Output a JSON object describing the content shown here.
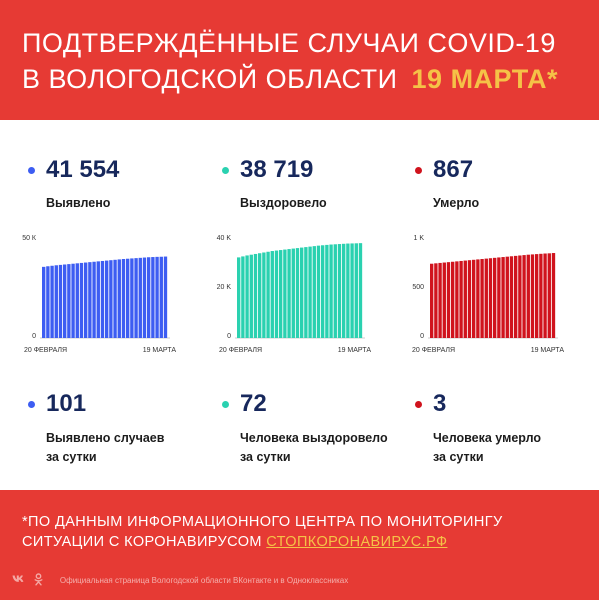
{
  "header": {
    "line1": "ПОДТВЕРЖДЁННЫЕ СЛУЧАИ COVID-19",
    "line2": "В ВОЛОГОДСКОЙ ОБЛАСТИ",
    "date": "19 МАРТА*"
  },
  "colors": {
    "brand_red": "#e63a34",
    "accent_yellow": "#f5c247",
    "detected_blue": "#3d5df2",
    "recovered_teal": "#2ad1b0",
    "died_red": "#d0131d",
    "number_navy": "#17285c"
  },
  "totals": [
    {
      "value": "41 554",
      "label": "Выявлено"
    },
    {
      "value": "38 719",
      "label": "Выздоровело"
    },
    {
      "value": "867",
      "label": "Умерло"
    }
  ],
  "daily": [
    {
      "value": "101",
      "label_line1": "Выявлено случаев",
      "label_line2": "за сутки"
    },
    {
      "value": "72",
      "label_line1": "Человека выздоровело",
      "label_line2": "за сутки"
    },
    {
      "value": "3",
      "label_line1": "Человека умерло",
      "label_line2": "за сутки"
    }
  ],
  "chart_data": [
    {
      "type": "bar",
      "series": [
        {
          "values": [
            36300,
            36600,
            36850,
            37100,
            37300,
            37500,
            37700,
            37900,
            38100,
            38300,
            38500,
            38700,
            38900,
            39100,
            39300,
            39500,
            39700,
            39900,
            40100,
            40300,
            40450,
            40600,
            40750,
            40900,
            41050,
            41200,
            41300,
            41400,
            41454,
            41554
          ]
        }
      ],
      "x_tick_labels": [
        "20 ФЕВРАЛЯ",
        "19 МАРТА"
      ],
      "y_tick_labels": [
        "50 К",
        "0"
      ],
      "ylim": [
        0,
        50000
      ],
      "color": "#3d5df2"
    },
    {
      "type": "bar",
      "series": [
        {
          "values": [
            32900,
            33300,
            33700,
            34000,
            34300,
            34600,
            34900,
            35200,
            35500,
            35700,
            35900,
            36100,
            36300,
            36500,
            36700,
            36900,
            37100,
            37300,
            37500,
            37700,
            37850,
            38000,
            38150,
            38250,
            38350,
            38450,
            38550,
            38600,
            38647,
            38719
          ]
        }
      ],
      "x_tick_labels": [
        "20 ФЕВРАЛЯ",
        "19 МАРТА"
      ],
      "y_tick_labels": [
        "40 K",
        "20 K",
        "0"
      ],
      "ylim": [
        0,
        40000
      ],
      "color": "#2ad1b0"
    },
    {
      "type": "bar",
      "series": [
        {
          "values": [
            758,
            762,
            766,
            770,
            774,
            778,
            782,
            786,
            790,
            794,
            798,
            802,
            806,
            810,
            814,
            818,
            822,
            826,
            830,
            834,
            838,
            842,
            846,
            850,
            853,
            856,
            859,
            862,
            864,
            867
          ]
        }
      ],
      "x_tick_labels": [
        "20 ФЕВРАЛЯ",
        "19 МАРТА"
      ],
      "y_tick_labels": [
        "1 K",
        "500",
        "0"
      ],
      "ylim": [
        0,
        1000
      ],
      "color": "#d0131d"
    }
  ],
  "footer": {
    "note_line1": "*ПО ДАННЫМ ИНФОРМАЦИОННОГО ЦЕНТРА ПО МОНИТОРИНГУ",
    "note_line2_prefix": "СИТУАЦИИ С КОРОНАВИРУСОМ ",
    "note_link": "СТОПКОРОНАВИРУС.РФ",
    "social_icons": [
      "vk-icon",
      "odnoklassniki-icon"
    ],
    "social_text": "Официальная страница Вологодской области ВКонтакте и в Одноклассниках"
  }
}
